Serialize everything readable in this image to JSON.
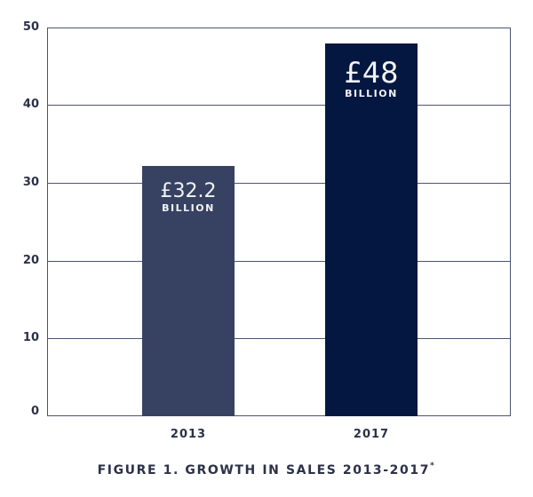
{
  "chart_data": {
    "type": "bar",
    "title": "FIGURE 1. GROWTH IN SALES 2013-2017",
    "title_footnote_marker": "*",
    "xlabel": "",
    "ylabel": "",
    "categories": [
      "2013",
      "2017"
    ],
    "values": [
      32.2,
      48
    ],
    "unit": "£ billion",
    "data_labels": [
      {
        "value": "£32.2",
        "unit": "BILLION"
      },
      {
        "value": "£48",
        "unit": "BILLION"
      }
    ],
    "bar_colors": [
      "#374262",
      "#041740"
    ],
    "ylim": [
      0,
      50
    ],
    "yticks": [
      0,
      10,
      20,
      30,
      40,
      50
    ],
    "grid": true,
    "legend": null
  },
  "axis": {
    "y_ticks": [
      "50",
      "40",
      "30",
      "20",
      "10",
      "0"
    ],
    "x_ticks": [
      "2013",
      "2017"
    ]
  },
  "bars": [
    {
      "category": "2013",
      "value_label": "£32.2",
      "unit_label": "BILLION",
      "color": "#374262"
    },
    {
      "category": "2017",
      "value_label": "£48",
      "unit_label": "BILLION",
      "color": "#041740"
    }
  ],
  "caption": {
    "text": "FIGURE 1. GROWTH IN SALES 2013-2017",
    "footnote_marker": "*"
  },
  "colors": {
    "axis": "#4b5573",
    "text": "#2b3148",
    "bar_label_text": "#f2f3f7"
  }
}
